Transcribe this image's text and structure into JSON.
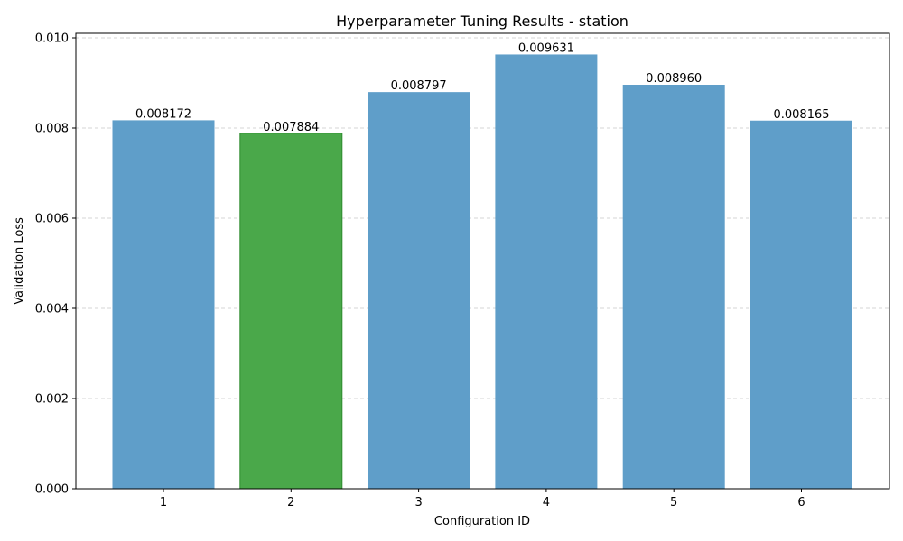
{
  "chart_data": {
    "type": "bar",
    "title": "Hyperparameter Tuning Results - station",
    "xlabel": "Configuration ID",
    "ylabel": "Validation Loss",
    "categories": [
      "1",
      "2",
      "3",
      "4",
      "5",
      "6"
    ],
    "values": [
      0.008172,
      0.007884,
      0.008797,
      0.009631,
      0.00896,
      0.008165
    ],
    "data_labels": [
      "0.008172",
      "0.007884",
      "0.008797",
      "0.009631",
      "0.008960",
      "0.008165"
    ],
    "highlight_index": 1,
    "ylim": [
      0,
      0.0101
    ],
    "yticks": [
      0,
      0.002,
      0.004,
      0.006,
      0.008,
      0.01
    ],
    "ytick_labels": [
      "0.000",
      "0.002",
      "0.004",
      "0.006",
      "0.008",
      "0.010"
    ],
    "grid": "horizontal dashed",
    "colors": {
      "bar": "#5f9ec9",
      "highlight": "#4aa84a",
      "highlight_edge": "#2e8b2e",
      "grid": "#c8c8c8",
      "axis": "#000000"
    }
  }
}
